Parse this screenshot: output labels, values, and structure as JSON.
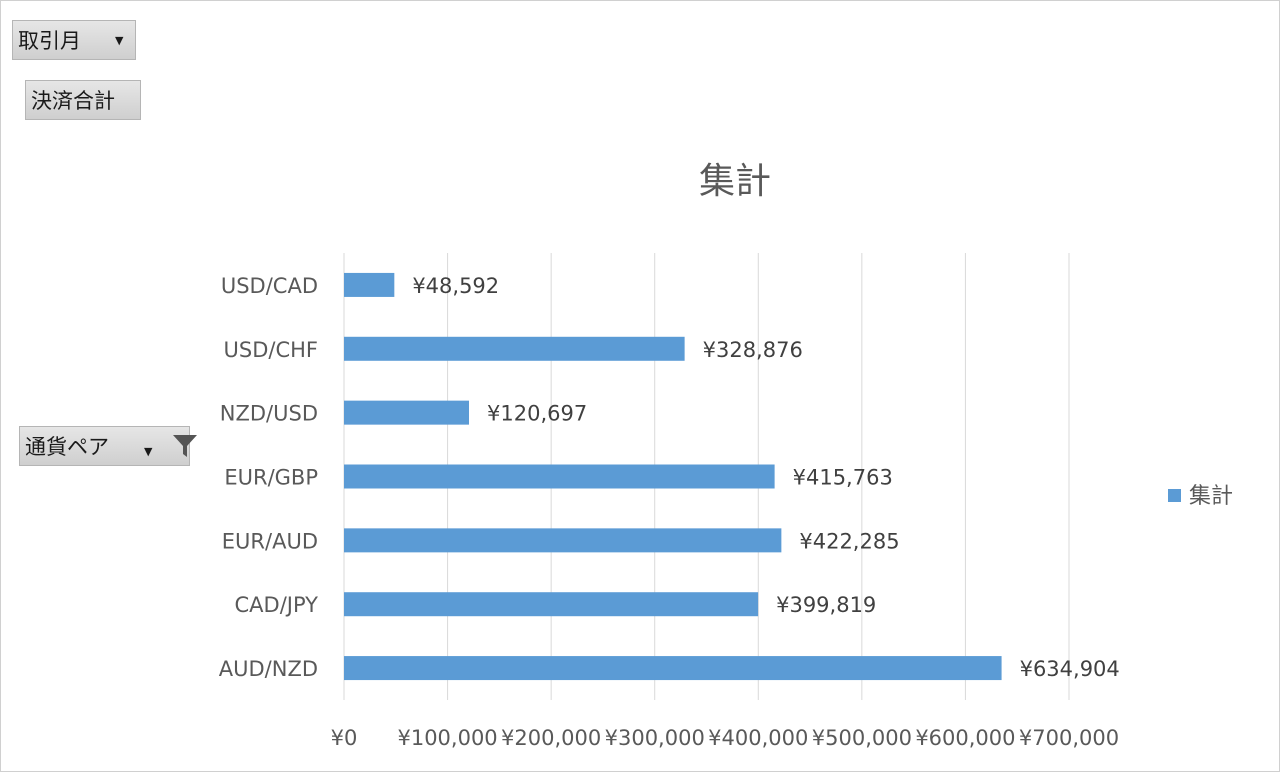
{
  "pivot_fields": {
    "month_button": "取引月",
    "sum_button": "決済合計",
    "pair_button": "通貨ペア"
  },
  "colors": {
    "bar": "#5b9bd5",
    "grid": "#d9d9d9"
  },
  "chart_data": {
    "type": "bar",
    "orientation": "horizontal",
    "title": "集計",
    "categories": [
      "USD/CAD",
      "USD/CHF",
      "NZD/USD",
      "EUR/GBP",
      "EUR/AUD",
      "CAD/JPY",
      "AUD/NZD"
    ],
    "series": [
      {
        "name": "集計",
        "values": [
          48592,
          328876,
          120697,
          415763,
          422285,
          399819,
          634904
        ],
        "labels": [
          "¥48,592",
          "¥328,876",
          "¥120,697",
          "¥415,763",
          "¥422,285",
          "¥399,819",
          "¥634,904"
        ]
      }
    ],
    "xlim": [
      0,
      700000
    ],
    "x_ticks": [
      "¥0",
      "¥100,000",
      "¥200,000",
      "¥300,000",
      "¥400,000",
      "¥500,000",
      "¥600,000",
      "¥700,000"
    ],
    "grid": true,
    "legend": "right"
  }
}
